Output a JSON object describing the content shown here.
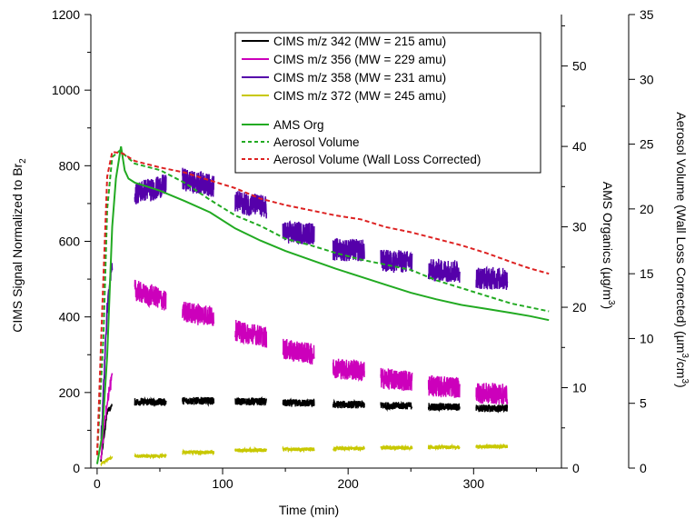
{
  "chart_data": {
    "type": "line",
    "xlabel": "Time (min)",
    "ylabel_left": "CIMS Signal Normalized to Br",
    "ylabel_left_subscript": "2",
    "ylabel_right1": "AMS Organics (µg/m",
    "ylabel_right1_superscript": "3",
    "ylabel_right1_close": ")",
    "ylabel_right2": "Aerosol Volume (Wall Loss Corrected) (µm",
    "ylabel_right2_sup1": "3",
    "ylabel_right2_mid": "/cm",
    "ylabel_right2_sup2": "3",
    "ylabel_right2_close": ")",
    "xlim": [
      -5,
      370
    ],
    "ylim_left": [
      0,
      1200
    ],
    "ylim_right1": [
      0,
      56.4
    ],
    "ylim_right2": [
      0,
      35
    ],
    "xticks": [
      "0",
      "100",
      "200",
      "300"
    ],
    "xtick_values": [
      0,
      100,
      200,
      300
    ],
    "yticks_left": [
      "0",
      "200",
      "400",
      "600",
      "800",
      "1000",
      "1200"
    ],
    "yticks_left_values": [
      0,
      200,
      400,
      600,
      800,
      1000,
      1200
    ],
    "yticks_right1": [
      "0",
      "10",
      "20",
      "30",
      "40",
      "50"
    ],
    "yticks_right1_values": [
      0,
      10,
      20,
      30,
      40,
      50
    ],
    "yticks_right2": [
      "0",
      "5",
      "10",
      "15",
      "20",
      "25",
      "30",
      "35"
    ],
    "yticks_right2_values": [
      0,
      5,
      10,
      15,
      20,
      25,
      30,
      35
    ],
    "legend_position": "top-right",
    "cims_segments": [
      [
        3,
        12
      ],
      [
        30,
        55
      ],
      [
        68,
        93
      ],
      [
        110,
        135
      ],
      [
        148,
        173
      ],
      [
        188,
        213
      ],
      [
        226,
        251
      ],
      [
        264,
        289
      ],
      [
        302,
        327
      ]
    ],
    "series": [
      {
        "name": "CIMS m/z 342 (MW = 215 amu)",
        "color": "#000000",
        "style": "solid",
        "axis": "left",
        "ramp_points": [
          [
            0,
            5
          ],
          [
            3,
            20
          ],
          [
            8,
            150
          ],
          [
            12,
            165
          ]
        ],
        "segment_levels": [
          175,
          178,
          176,
          172,
          168,
          165,
          162,
          158,
          155
        ],
        "noise": 10
      },
      {
        "name": "CIMS m/z 356 (MW = 229 amu)",
        "color": "#cc00bb",
        "style": "solid",
        "axis": "left",
        "ramp_points": [
          [
            0,
            5
          ],
          [
            3,
            30
          ],
          [
            8,
            180
          ],
          [
            12,
            240
          ]
        ],
        "segment_levels": [
          440,
          400,
          345,
          300,
          255,
          230,
          212,
          195,
          178
        ],
        "segment_start_levels": [
          480,
          420,
          370,
          320,
          270,
          240,
          220,
          200,
          180
        ],
        "noise": 28
      },
      {
        "name": "CIMS m/z 358 (MW = 231 amu)",
        "color": "#5500aa",
        "style": "solid",
        "axis": "left",
        "ramp_points": [
          [
            0,
            5
          ],
          [
            3,
            60
          ],
          [
            8,
            420
          ],
          [
            12,
            540
          ]
        ],
        "segment_levels": [
          750,
          745,
          690,
          620,
          575,
          545,
          520,
          500,
          480
        ],
        "segment_start_levels": [
          720,
          770,
          710,
          625,
          580,
          550,
          525,
          505,
          485
        ],
        "noise": 30
      },
      {
        "name": "CIMS m/z 372 (MW = 245 amu)",
        "color": "#c8c800",
        "style": "solid",
        "axis": "left",
        "ramp_points": [
          [
            0,
            3
          ],
          [
            3,
            10
          ],
          [
            8,
            22
          ],
          [
            12,
            28
          ]
        ],
        "segment_levels": [
          32,
          42,
          47,
          50,
          52,
          54,
          55,
          57,
          58
        ],
        "noise": 5
      },
      {
        "name": "AMS Org",
        "color": "#22aa22",
        "style": "solid",
        "axis": "right1",
        "points": [
          [
            0,
            0.5
          ],
          [
            4,
            4
          ],
          [
            8,
            14
          ],
          [
            12,
            30
          ],
          [
            15,
            36
          ],
          [
            17,
            38
          ],
          [
            19,
            40
          ],
          [
            22,
            37
          ],
          [
            25,
            36
          ],
          [
            30,
            35.5
          ],
          [
            40,
            35
          ],
          [
            50,
            34.5
          ],
          [
            70,
            33.2
          ],
          [
            90,
            31.8
          ],
          [
            110,
            29.8
          ],
          [
            130,
            28.3
          ],
          [
            150,
            27
          ],
          [
            170,
            25.9
          ],
          [
            190,
            24.8
          ],
          [
            210,
            23.8
          ],
          [
            230,
            22.8
          ],
          [
            250,
            21.8
          ],
          [
            270,
            21
          ],
          [
            290,
            20.3
          ],
          [
            310,
            19.8
          ],
          [
            330,
            19.3
          ],
          [
            345,
            18.9
          ],
          [
            360,
            18.4
          ]
        ]
      },
      {
        "name": "Aerosol Volume",
        "color": "#22aa22",
        "style": "dashed",
        "axis": "right2",
        "points": [
          [
            0,
            1
          ],
          [
            5,
            10
          ],
          [
            8,
            20
          ],
          [
            12,
            24
          ],
          [
            18,
            24.5
          ],
          [
            30,
            23.5
          ],
          [
            50,
            23
          ],
          [
            70,
            22
          ],
          [
            90,
            20.7
          ],
          [
            110,
            19.5
          ],
          [
            130,
            18.7
          ],
          [
            150,
            17.7
          ],
          [
            170,
            17.2
          ],
          [
            190,
            16.6
          ],
          [
            210,
            16.1
          ],
          [
            230,
            15.7
          ],
          [
            250,
            15.3
          ],
          [
            270,
            14.5
          ],
          [
            290,
            13.9
          ],
          [
            310,
            13.3
          ],
          [
            330,
            12.7
          ],
          [
            345,
            12.4
          ],
          [
            360,
            12.1
          ]
        ]
      },
      {
        "name": "Aerosol Volume (Wall Loss Corrected)",
        "color": "#dd2222",
        "style": "dashed",
        "axis": "right2",
        "points": [
          [
            0,
            1
          ],
          [
            4,
            12
          ],
          [
            8,
            22.5
          ],
          [
            12,
            24.4
          ],
          [
            20,
            24.3
          ],
          [
            30,
            23.7
          ],
          [
            50,
            23.2
          ],
          [
            70,
            22.8
          ],
          [
            90,
            22.2
          ],
          [
            110,
            21.6
          ],
          [
            130,
            20.8
          ],
          [
            150,
            20.3
          ],
          [
            170,
            19.9
          ],
          [
            190,
            19.5
          ],
          [
            210,
            19.2
          ],
          [
            230,
            18.6
          ],
          [
            250,
            18.2
          ],
          [
            270,
            17.7
          ],
          [
            290,
            17.2
          ],
          [
            310,
            16.6
          ],
          [
            330,
            15.9
          ],
          [
            345,
            15.4
          ],
          [
            360,
            15
          ]
        ]
      }
    ]
  }
}
